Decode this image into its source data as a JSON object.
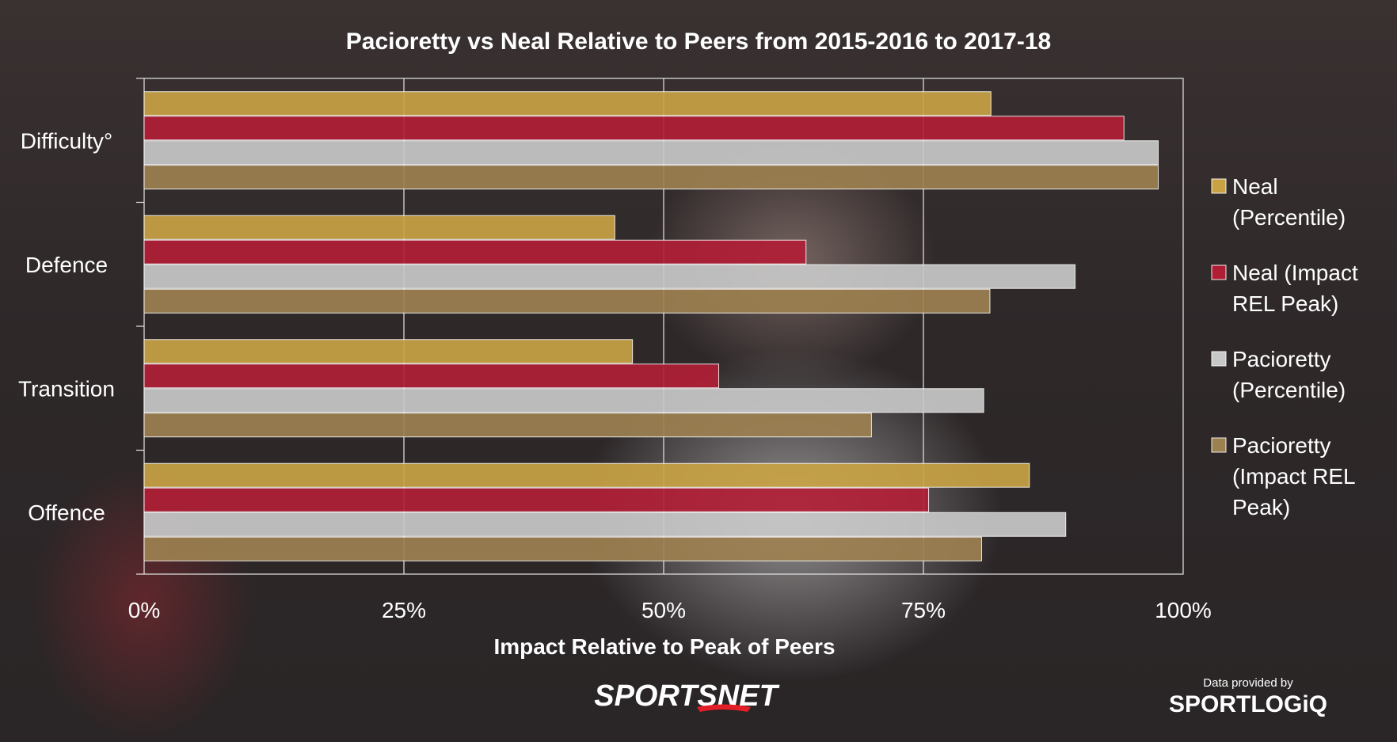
{
  "chart_data": {
    "type": "bar",
    "orientation": "horizontal",
    "title": "Pacioretty vs Neal Relative to Peers from 2015-2016 to 2017-18",
    "xlabel": "Impact Relative to Peak of Peers",
    "ylabel": "",
    "xlim": [
      0,
      1
    ],
    "x_ticks": [
      "0%",
      "25%",
      "50%",
      "75%",
      "100%"
    ],
    "grid": true,
    "legend_position": "right",
    "categories": [
      "Difficulty°",
      "Defence",
      "Transition",
      "Offence"
    ],
    "series": [
      {
        "name": "Neal (Percentile)",
        "color": "#c8a244",
        "values": [
          0.815,
          0.453,
          0.47,
          0.852
        ]
      },
      {
        "name": "Neal (Impact REL Peak)",
        "color": "#b01e36",
        "values": [
          0.943,
          0.637,
          0.553,
          0.755
        ]
      },
      {
        "name": "Pacioretty (Percentile)",
        "color": "#c8c8c8",
        "values": [
          0.976,
          0.896,
          0.808,
          0.887
        ]
      },
      {
        "name": "Pacioretty (Impact REL Peak)",
        "color": "#9c8050",
        "values": [
          0.976,
          0.814,
          0.7,
          0.806
        ]
      }
    ],
    "legend_lines": [
      [
        "Neal",
        "(Percentile)"
      ],
      [
        "Neal (Impact",
        "REL Peak)"
      ],
      [
        "Pacioretty",
        "(Percentile)"
      ],
      [
        "Pacioretty",
        "(Impact REL",
        "Peak)"
      ]
    ]
  },
  "branding": {
    "publisher": "SPORTSNET",
    "credit": "Data provided by",
    "data_provider": "SPORTLOGiQ"
  }
}
